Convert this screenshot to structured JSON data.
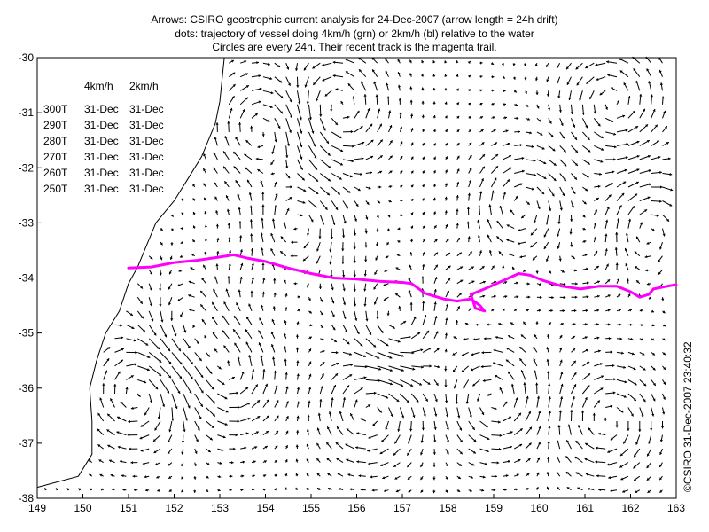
{
  "title": {
    "lines": [
      "Arrows: CSIRO geostrophic current analysis for 24-Dec-2007 (arrow length = 24h drift)",
      "dots: trajectory of vessel doing 4km/h (grn) or 2km/h (bl) relative to the water",
      "Circles are every 24h. Their recent track is the magenta trail."
    ]
  },
  "copyright": "©CSIRO 31-Dec-2007 23:40:32",
  "heading_table": {
    "columns": [
      "4km/h",
      "2km/h"
    ],
    "rows": [
      {
        "heading": "300T",
        "v4": "31-Dec",
        "v2": "31-Dec"
      },
      {
        "heading": "290T",
        "v4": "31-Dec",
        "v2": "31-Dec"
      },
      {
        "heading": "280T",
        "v4": "31-Dec",
        "v2": "31-Dec"
      },
      {
        "heading": "270T",
        "v4": "31-Dec",
        "v2": "31-Dec"
      },
      {
        "heading": "260T",
        "v4": "31-Dec",
        "v2": "31-Dec"
      },
      {
        "heading": "250T",
        "v4": "31-Dec",
        "v2": "31-Dec"
      }
    ]
  },
  "map": {
    "lon_range": [
      149,
      163
    ],
    "lat_range": [
      -38,
      -30
    ],
    "x_ticks": [
      "149",
      "150",
      "151",
      "152",
      "153",
      "154",
      "155",
      "156",
      "157",
      "158",
      "159",
      "160",
      "161",
      "162",
      "163"
    ],
    "y_ticks": [
      "-30",
      "-31",
      "-32",
      "-33",
      "-34",
      "-35",
      "-36",
      "-37",
      "-38"
    ],
    "colors": {
      "track": "#ff00ff",
      "arrows": "#000000",
      "coast": "#000000"
    },
    "coastline": [
      [
        149.0,
        -37.8
      ],
      [
        149.9,
        -37.6
      ],
      [
        150.2,
        -37.2
      ],
      [
        150.2,
        -36.6
      ],
      [
        150.15,
        -36.0
      ],
      [
        150.3,
        -35.5
      ],
      [
        150.5,
        -35.0
      ],
      [
        150.8,
        -34.6
      ],
      [
        151.0,
        -34.1
      ],
      [
        151.2,
        -33.8
      ],
      [
        151.4,
        -33.4
      ],
      [
        151.6,
        -33.0
      ],
      [
        152.0,
        -32.6
      ],
      [
        152.3,
        -32.2
      ],
      [
        152.6,
        -31.8
      ],
      [
        152.9,
        -31.2
      ],
      [
        153.0,
        -30.8
      ],
      [
        153.1,
        -30.0
      ]
    ],
    "vessel_track": [
      [
        151.0,
        -33.82
      ],
      [
        151.5,
        -33.8
      ],
      [
        152.0,
        -33.72
      ],
      [
        152.5,
        -33.68
      ],
      [
        153.0,
        -33.62
      ],
      [
        153.3,
        -33.58
      ],
      [
        153.6,
        -33.64
      ],
      [
        154.0,
        -33.7
      ],
      [
        154.5,
        -33.82
      ],
      [
        155.0,
        -33.92
      ],
      [
        155.5,
        -34.0
      ],
      [
        156.0,
        -34.02
      ],
      [
        156.5,
        -34.06
      ],
      [
        157.0,
        -34.08
      ],
      [
        157.2,
        -34.1
      ],
      [
        157.5,
        -34.28
      ],
      [
        157.9,
        -34.38
      ],
      [
        158.2,
        -34.42
      ],
      [
        158.5,
        -34.38
      ],
      [
        158.7,
        -34.5
      ],
      [
        158.8,
        -34.6
      ],
      [
        158.6,
        -34.55
      ],
      [
        158.5,
        -34.3
      ],
      [
        158.8,
        -34.2
      ],
      [
        159.2,
        -34.05
      ],
      [
        159.55,
        -33.92
      ],
      [
        159.8,
        -33.95
      ],
      [
        160.1,
        -34.05
      ],
      [
        160.5,
        -34.15
      ],
      [
        160.9,
        -34.2
      ],
      [
        161.3,
        -34.15
      ],
      [
        161.7,
        -34.15
      ],
      [
        162.0,
        -34.25
      ],
      [
        162.2,
        -34.35
      ],
      [
        162.4,
        -34.3
      ],
      [
        162.5,
        -34.2
      ],
      [
        162.8,
        -34.15
      ],
      [
        163.0,
        -34.12
      ]
    ],
    "eddies": [
      {
        "lon": 155.6,
        "lat": -30.9,
        "sense": 1
      },
      {
        "lon": 153.9,
        "lat": -31.3,
        "sense": -1
      },
      {
        "lon": 154.7,
        "lat": -33.0,
        "sense": -1
      },
      {
        "lon": 152.3,
        "lat": -34.8,
        "sense": 1
      },
      {
        "lon": 151.2,
        "lat": -36.1,
        "sense": -1
      },
      {
        "lon": 153.2,
        "lat": -35.8,
        "sense": 1
      },
      {
        "lon": 156.3,
        "lat": -36.4,
        "sense": -1
      },
      {
        "lon": 156.8,
        "lat": -34.8,
        "sense": 1
      },
      {
        "lon": 159.6,
        "lat": -32.7,
        "sense": -1
      },
      {
        "lon": 161.6,
        "lat": -30.8,
        "sense": 1
      },
      {
        "lon": 162.4,
        "lat": -33.1,
        "sense": -1
      },
      {
        "lon": 159.0,
        "lat": -36.2,
        "sense": 1
      },
      {
        "lon": 161.5,
        "lat": -36.6,
        "sense": -1
      }
    ]
  }
}
